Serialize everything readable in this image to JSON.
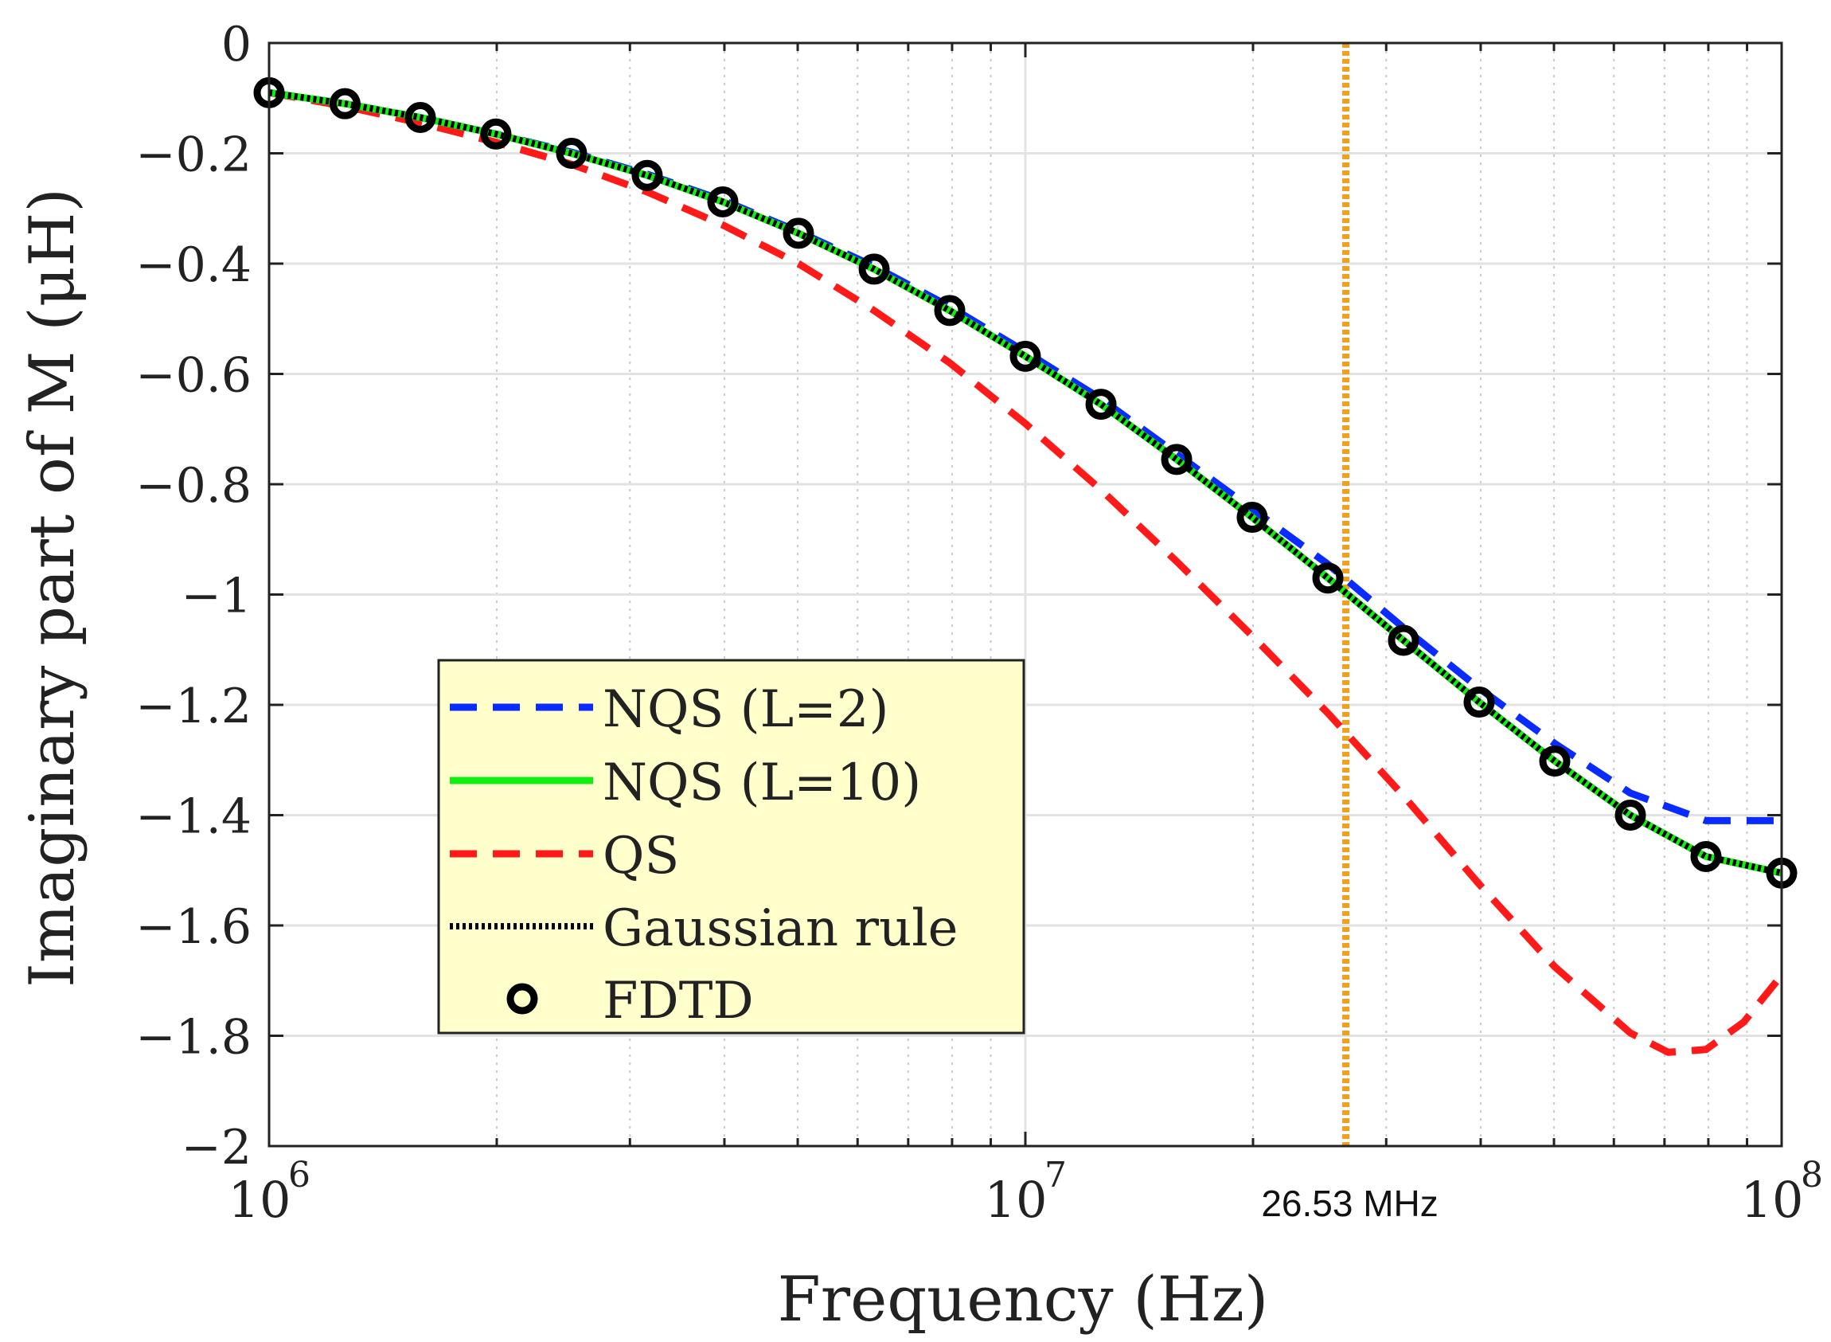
{
  "chart_data": {
    "type": "line",
    "xscale": "log",
    "xlim": [
      1000000,
      100000000
    ],
    "ylim": [
      -2,
      0
    ],
    "xlabel": "Frequency (Hz)",
    "ylabel": "Imaginary part of M (μH)",
    "x_tick_labels": [
      {
        "base": "10",
        "exp": "6",
        "value": 1000000
      },
      {
        "base": "10",
        "exp": "7",
        "value": 10000000
      },
      {
        "base": "10",
        "exp": "8",
        "value": 100000000
      }
    ],
    "y_ticks": [
      0,
      -0.2,
      -0.4,
      -0.6,
      -0.8,
      -1,
      -1.2,
      -1.4,
      -1.6,
      -1.8,
      -2
    ],
    "y_tick_labels": [
      "0",
      "−0.2",
      "−0.4",
      "−0.6",
      "−0.8",
      "−1",
      "−1.2",
      "−1.4",
      "−1.6",
      "−1.8",
      "−2"
    ],
    "grid": true,
    "vline": {
      "x": 26530000,
      "label": "26.53 MHz",
      "color": "#f0a020"
    },
    "legend_location": "lower-left",
    "legend_background": "#ffffcc",
    "series": [
      {
        "name": "NQS (L=2)",
        "style": "dashed",
        "color": "#0a2bff",
        "x": [
          1000000,
          1260000,
          1585000,
          1995000,
          2512000,
          3162000,
          3981000,
          5012000,
          6310000,
          7943000,
          10000000,
          12590000,
          15850000,
          19950000,
          25120000,
          31620000,
          39810000,
          50120000,
          63100000,
          79430000,
          100000000
        ],
        "y": [
          -0.09,
          -0.11,
          -0.135,
          -0.165,
          -0.198,
          -0.238,
          -0.285,
          -0.342,
          -0.405,
          -0.478,
          -0.56,
          -0.645,
          -0.745,
          -0.845,
          -0.945,
          -1.06,
          -1.17,
          -1.27,
          -1.36,
          -1.41,
          -1.41
        ]
      },
      {
        "name": "NQS (L=10)",
        "style": "solid",
        "color": "#11ee11",
        "x": [
          1000000,
          1260000,
          1585000,
          1995000,
          2512000,
          3162000,
          3981000,
          5012000,
          6310000,
          7943000,
          10000000,
          12590000,
          15850000,
          19950000,
          25120000,
          31620000,
          39810000,
          50120000,
          63100000,
          79430000,
          100000000
        ],
        "y": [
          -0.09,
          -0.11,
          -0.135,
          -0.165,
          -0.2,
          -0.24,
          -0.288,
          -0.345,
          -0.41,
          -0.485,
          -0.568,
          -0.655,
          -0.755,
          -0.86,
          -0.97,
          -1.083,
          -1.195,
          -1.302,
          -1.4,
          -1.475,
          -1.505
        ]
      },
      {
        "name": "QS",
        "style": "dashed",
        "color": "#ff1a1a",
        "x": [
          1000000,
          1260000,
          1585000,
          1995000,
          2512000,
          3162000,
          3981000,
          5012000,
          6310000,
          7943000,
          10000000,
          12590000,
          15850000,
          19950000,
          25120000,
          31620000,
          39810000,
          50120000,
          63100000,
          70790000,
          79430000,
          89130000,
          100000000
        ],
        "y": [
          -0.09,
          -0.115,
          -0.145,
          -0.18,
          -0.22,
          -0.27,
          -0.33,
          -0.4,
          -0.485,
          -0.58,
          -0.69,
          -0.81,
          -0.94,
          -1.075,
          -1.215,
          -1.365,
          -1.525,
          -1.675,
          -1.795,
          -1.83,
          -1.825,
          -1.775,
          -1.69
        ]
      },
      {
        "name": "Gaussian rule",
        "style": "dotted",
        "color": "#000000",
        "x": [
          1000000,
          1260000,
          1585000,
          1995000,
          2512000,
          3162000,
          3981000,
          5012000,
          6310000,
          7943000,
          10000000,
          12590000,
          15850000,
          19950000,
          25120000,
          31620000,
          39810000,
          50120000,
          63100000,
          79430000,
          100000000
        ],
        "y": [
          -0.09,
          -0.11,
          -0.135,
          -0.165,
          -0.2,
          -0.24,
          -0.288,
          -0.345,
          -0.41,
          -0.485,
          -0.568,
          -0.655,
          -0.755,
          -0.86,
          -0.97,
          -1.083,
          -1.195,
          -1.302,
          -1.4,
          -1.475,
          -1.505
        ]
      },
      {
        "name": "FDTD",
        "style": "markers",
        "color": "#000000",
        "x": [
          1000000,
          1260000,
          1585000,
          1995000,
          2512000,
          3162000,
          3981000,
          5012000,
          6310000,
          7943000,
          10000000,
          12590000,
          15850000,
          19950000,
          25120000,
          31620000,
          39810000,
          50120000,
          63100000,
          79430000,
          100000000
        ],
        "y": [
          -0.09,
          -0.11,
          -0.135,
          -0.165,
          -0.2,
          -0.24,
          -0.288,
          -0.345,
          -0.41,
          -0.485,
          -0.568,
          -0.655,
          -0.755,
          -0.86,
          -0.97,
          -1.083,
          -1.195,
          -1.302,
          -1.4,
          -1.475,
          -1.505
        ]
      }
    ]
  }
}
